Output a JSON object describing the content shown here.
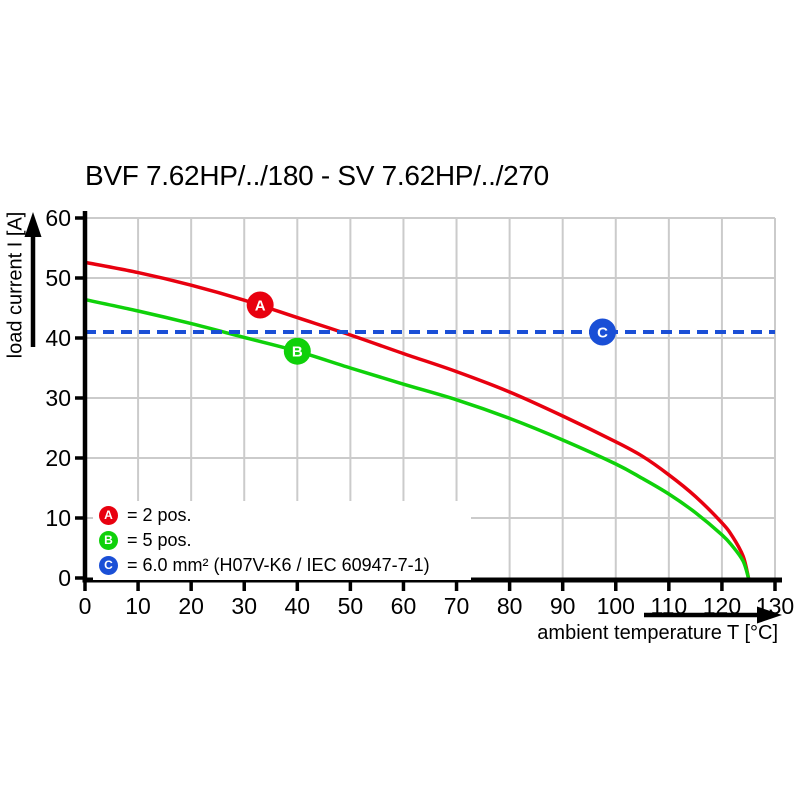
{
  "title": "BVF 7.62HP/../180 - SV 7.62HP/../270",
  "chart_data": {
    "type": "line",
    "title": "BVF 7.62HP/../180 - SV 7.62HP/../270",
    "xlabel": "ambient temperature T [°C]",
    "ylabel": "load current I [A]",
    "xlim": [
      0,
      130
    ],
    "ylim": [
      0,
      60
    ],
    "xticks": [
      0,
      10,
      20,
      30,
      40,
      50,
      60,
      70,
      80,
      90,
      100,
      110,
      120,
      130
    ],
    "yticks": [
      0,
      10,
      20,
      30,
      40,
      50,
      60
    ],
    "grid": true,
    "grid_color": "#cbcbcb",
    "axis_color": "#000000",
    "series": [
      {
        "name": "A",
        "label": "2 pos.",
        "color": "#e8000f",
        "style": "solid",
        "x": [
          0,
          10,
          20,
          30,
          40,
          50,
          60,
          70,
          80,
          90,
          100,
          105,
          110,
          115,
          120,
          122,
          124,
          125
        ],
        "y": [
          52.6,
          50.9,
          48.8,
          46.3,
          43.4,
          40.5,
          37.4,
          34.4,
          31.0,
          27.0,
          22.7,
          20.3,
          17.2,
          13.6,
          9.2,
          6.9,
          3.6,
          0
        ]
      },
      {
        "name": "B",
        "label": "5 pos.",
        "color": "#0fd10a",
        "style": "solid",
        "x": [
          0,
          10,
          20,
          30,
          40,
          50,
          60,
          70,
          80,
          90,
          100,
          105,
          110,
          115,
          120,
          122,
          124,
          125
        ],
        "y": [
          46.4,
          44.5,
          42.4,
          40.1,
          37.8,
          35.0,
          32.3,
          29.7,
          26.6,
          23.0,
          19.0,
          16.6,
          14.0,
          10.9,
          7.2,
          5.3,
          2.8,
          0
        ]
      },
      {
        "name": "C",
        "label": "6.0 mm² (H07V-K6 / IEC 60947-7-1)",
        "color": "#1a4fd6",
        "style": "dashed",
        "x": [
          0,
          130
        ],
        "y": [
          41,
          41
        ]
      }
    ],
    "markers": [
      {
        "letter": "A",
        "x": 33,
        "y": 45.5,
        "color": "#e8000f"
      },
      {
        "letter": "B",
        "x": 40,
        "y": 37.8,
        "color": "#0fd10a"
      },
      {
        "letter": "C",
        "x": 97.5,
        "y": 41,
        "color": "#1a4fd6"
      }
    ],
    "legend": [
      {
        "letter": "A",
        "color": "#e8000f",
        "text": "= 2 pos."
      },
      {
        "letter": "B",
        "color": "#0fd10a",
        "text": "= 5 pos."
      },
      {
        "letter": "C",
        "color": "#1a4fd6",
        "text": "= 6.0 mm² (H07V-K6 / IEC 60947-7-1)"
      }
    ],
    "legend_position": "lower left"
  }
}
